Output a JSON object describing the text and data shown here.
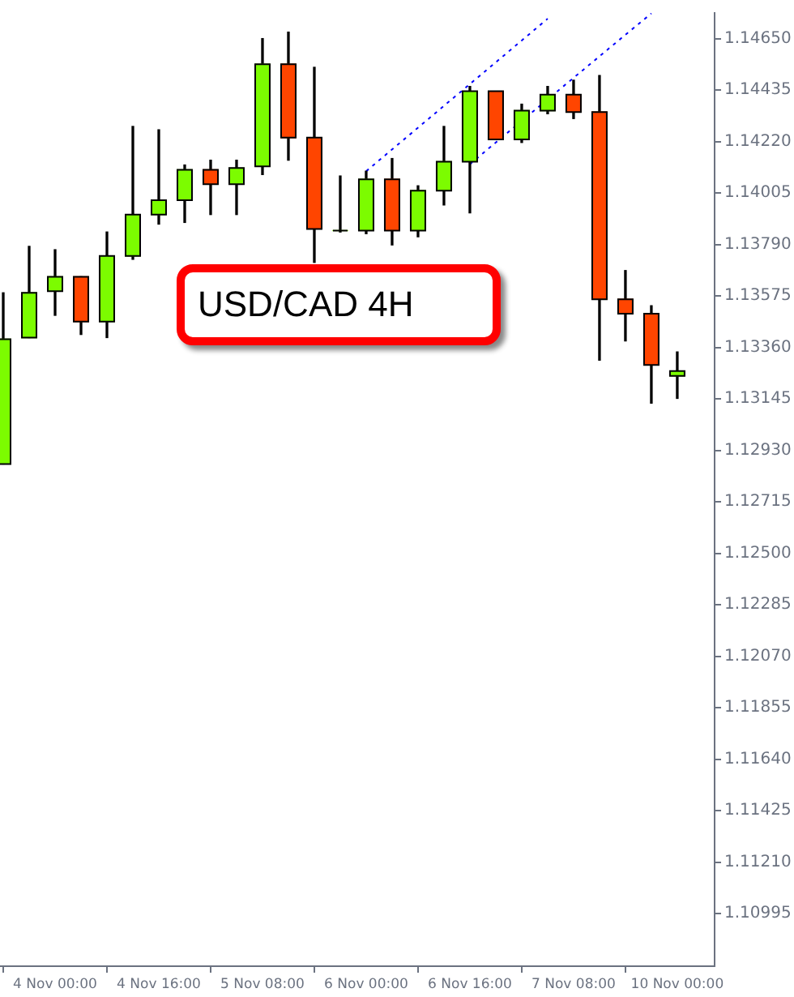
{
  "chart_data": {
    "type": "candlestick",
    "title": "USD/CAD 4H",
    "categories": [
      null,
      null,
      "4 Nov 00:00",
      null,
      null,
      null,
      "4 Nov 16:00",
      null,
      null,
      null,
      "5 Nov 08:00",
      null,
      null,
      null,
      "6 Nov 00:00",
      null,
      null,
      null,
      "6 Nov 16:00",
      null,
      null,
      null,
      "7 Nov 08:00",
      null,
      null,
      null,
      "10 Nov 00:00"
    ],
    "ohlc": [
      [
        1.12873,
        1.13588,
        1.12873,
        1.13394
      ],
      [
        1.13401,
        1.13782,
        1.13401,
        1.13588
      ],
      [
        1.13595,
        1.13768,
        1.13494,
        1.13655
      ],
      [
        1.13655,
        1.13655,
        1.13414,
        1.13468
      ],
      [
        1.13468,
        1.13842,
        1.13401,
        1.13742
      ],
      [
        1.13742,
        1.14283,
        1.13728,
        1.13915
      ],
      [
        1.13915,
        1.14269,
        1.13875,
        1.13975
      ],
      [
        1.13975,
        1.14122,
        1.13882,
        1.14102
      ],
      [
        1.14102,
        1.14142,
        1.13915,
        1.14042
      ],
      [
        1.14042,
        1.14142,
        1.13915,
        1.14109
      ],
      [
        1.14116,
        1.1465,
        1.14082,
        1.14543
      ],
      [
        1.14543,
        1.14677,
        1.14142,
        1.14236
      ],
      [
        1.14236,
        1.1453,
        1.13715,
        1.13855
      ],
      [
        1.13848,
        1.14076,
        1.13842,
        1.13848
      ],
      [
        1.13848,
        1.14096,
        1.13835,
        1.14062
      ],
      [
        1.14062,
        1.14149,
        1.13788,
        1.13848
      ],
      [
        1.13848,
        1.14035,
        1.13822,
        1.14015
      ],
      [
        1.14015,
        1.14283,
        1.13955,
        1.14136
      ],
      [
        1.14136,
        1.1445,
        1.13922,
        1.1443
      ],
      [
        1.1443,
        1.1443,
        1.14229,
        1.14229
      ],
      [
        1.14229,
        1.14376,
        1.14216,
        1.14349
      ],
      [
        1.14349,
        1.1445,
        1.14336,
        1.14416
      ],
      [
        1.14416,
        1.14476,
        1.14316,
        1.14343
      ],
      [
        1.14343,
        1.14496,
        1.13307,
        1.13561
      ],
      [
        1.13561,
        1.13681,
        1.13387,
        1.13501
      ],
      [
        1.13501,
        1.13534,
        1.13127,
        1.13287
      ],
      [
        1.13241,
        1.13341,
        1.13147,
        1.13261
      ]
    ],
    "colors": [
      "#7cfc00",
      "#7cfc00",
      "#7cfc00",
      "#ff4500",
      "#7cfc00",
      "#7cfc00",
      "#7cfc00",
      "#7cfc00",
      "#ff4500",
      "#7cfc00",
      "#7cfc00",
      "#ff4500",
      "#ff4500",
      "#7cfc00",
      "#7cfc00",
      "#ff4500",
      "#7cfc00",
      "#7cfc00",
      "#7cfc00",
      "#ff4500",
      "#7cfc00",
      "#7cfc00",
      "#ff4500",
      "#ff4500",
      "#ff4500",
      "#ff4500",
      "#7cfc00"
    ],
    "series": [
      {
        "type": "line",
        "color": "#0000ff",
        "line_style": "dotted",
        "values": [
          null,
          null,
          null,
          null,
          null,
          null,
          null,
          null,
          null,
          null,
          null,
          null,
          null,
          null,
          1.14096,
          1.14187,
          1.14278,
          1.14369,
          1.1446,
          1.14551,
          1.14642,
          1.14733,
          null,
          null,
          null,
          null,
          null
        ]
      },
      {
        "type": "line",
        "color": "#0000ff",
        "line_style": "dotted",
        "values": [
          null,
          null,
          null,
          null,
          null,
          null,
          null,
          null,
          null,
          null,
          null,
          null,
          null,
          null,
          null,
          null,
          null,
          null,
          1.14125,
          1.14216,
          1.14306,
          1.14396,
          1.14486,
          1.14576,
          1.14666,
          1.14755,
          null
        ]
      }
    ],
    "ylim": [
      1.10775,
      1.14757
    ],
    "yticks": [
      {
        "value": 1.1465,
        "label": "1.14650"
      },
      {
        "value": 1.14435,
        "label": "1.14435"
      },
      {
        "value": 1.1422,
        "label": "1.14220"
      },
      {
        "value": 1.14005,
        "label": "1.14005"
      },
      {
        "value": 1.1379,
        "label": "1.13790"
      },
      {
        "value": 1.13575,
        "label": "1.13575"
      },
      {
        "value": 1.1336,
        "label": "1.13360"
      },
      {
        "value": 1.13145,
        "label": "1.13145"
      },
      {
        "value": 1.1293,
        "label": "1.12930"
      },
      {
        "value": 1.12715,
        "label": "1.12715"
      },
      {
        "value": 1.125,
        "label": "1.12500"
      },
      {
        "value": 1.12285,
        "label": "1.12285"
      },
      {
        "value": 1.1207,
        "label": "1.12070"
      },
      {
        "value": 1.11855,
        "label": "1.11855"
      },
      {
        "value": 1.1164,
        "label": "1.11640"
      },
      {
        "value": 1.11425,
        "label": "1.11425"
      },
      {
        "value": 1.1121,
        "label": "1.11210"
      },
      {
        "value": 1.10995,
        "label": "1.10995"
      }
    ]
  }
}
